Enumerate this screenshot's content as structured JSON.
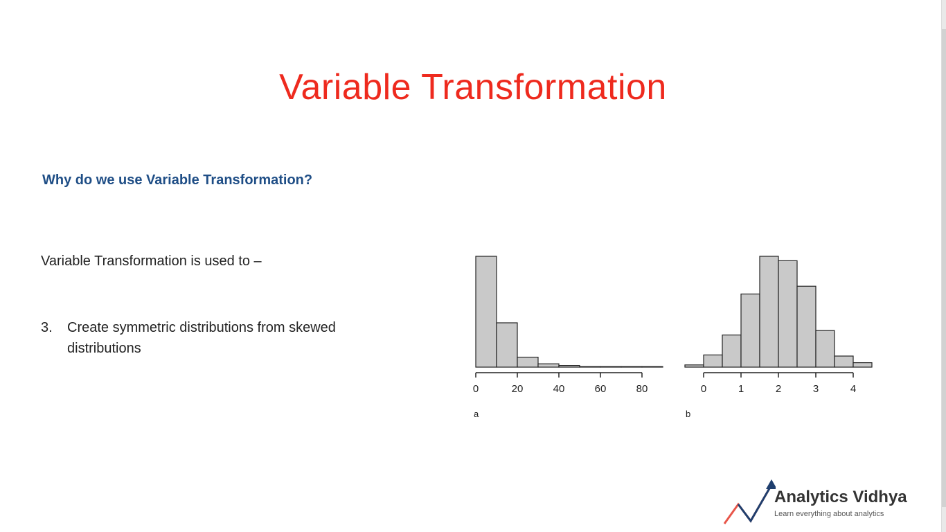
{
  "slide": {
    "title": "Variable Transformation",
    "subtitle": "Why do we use Variable Transformation?",
    "intro": "Variable Transformation is used to –",
    "point_number": "3.",
    "point_text": "Create symmetric distributions from skewed distributions"
  },
  "logo": {
    "name": "Analytics Vidhya",
    "tagline": "Learn everything about analytics"
  },
  "colors": {
    "title": "#ee2a1e",
    "subtitle": "#1f4e86",
    "bar_fill": "#c9c9c9",
    "bar_stroke": "#222222"
  },
  "chart_data": [
    {
      "type": "bar",
      "panel_label": "a",
      "bin_edges": [
        0,
        10,
        20,
        30,
        40,
        50,
        60,
        70,
        80,
        90
      ],
      "values": [
        100,
        40,
        9,
        3,
        1.5,
        0.5,
        0.5,
        0.5,
        0.5
      ],
      "xlim": [
        0,
        90
      ],
      "ylim": [
        0,
        100
      ],
      "x_ticks": [
        0,
        20,
        40,
        60,
        80
      ],
      "grid": false
    },
    {
      "type": "bar",
      "panel_label": "b",
      "bin_edges": [
        -0.5,
        0,
        0.5,
        1,
        1.5,
        2,
        2.5,
        3,
        3.5,
        4,
        4.5
      ],
      "values": [
        2,
        11,
        29,
        66,
        100,
        96,
        73,
        33,
        10,
        4
      ],
      "xlim": [
        -0.5,
        4.5
      ],
      "ylim": [
        0,
        100
      ],
      "x_ticks": [
        0,
        1,
        2,
        3,
        4
      ],
      "grid": false
    }
  ]
}
